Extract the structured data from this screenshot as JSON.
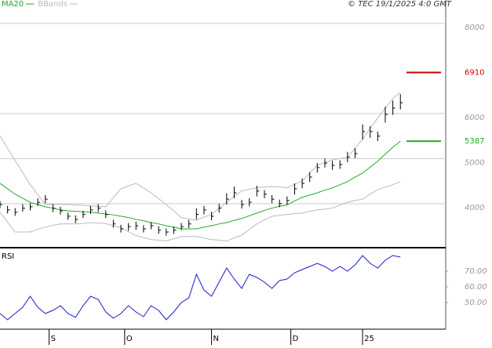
{
  "source": "© TEC 19/1/2025 4:0 GMT",
  "chart_data": [
    {
      "type": "ohlc",
      "x": [
        0,
        2,
        4,
        6,
        8,
        10,
        12,
        14,
        16,
        18,
        20,
        22,
        24,
        26,
        28,
        30,
        32,
        34,
        36,
        38,
        40,
        42,
        44,
        46,
        48,
        50,
        52,
        54,
        56,
        58,
        60,
        62,
        64,
        66,
        68,
        70,
        72,
        74,
        76,
        78,
        80,
        82,
        84,
        86,
        88,
        90,
        92,
        94,
        96,
        98,
        100,
        102,
        104,
        106
      ],
      "high": [
        4060,
        3950,
        3900,
        3990,
        4010,
        4120,
        4190,
        3990,
        3930,
        3800,
        3740,
        3840,
        3950,
        3990,
        3850,
        3640,
        3530,
        3570,
        3600,
        3520,
        3590,
        3500,
        3450,
        3490,
        3570,
        3640,
        3900,
        3950,
        3820,
        4000,
        4230,
        4380,
        4080,
        4120,
        4400,
        4300,
        4190,
        4090,
        4160,
        4450,
        4560,
        4700,
        4900,
        5000,
        4950,
        4960,
        5150,
        5230,
        5760,
        5720,
        5600,
        6150,
        6290,
        6430
      ],
      "low": [
        3900,
        3780,
        3730,
        3820,
        3850,
        3950,
        4010,
        3810,
        3760,
        3640,
        3570,
        3680,
        3770,
        3810,
        3680,
        3470,
        3360,
        3400,
        3420,
        3360,
        3430,
        3330,
        3290,
        3330,
        3410,
        3460,
        3650,
        3760,
        3630,
        3800,
        3980,
        4120,
        3890,
        3940,
        4160,
        4120,
        4010,
        3920,
        3980,
        4200,
        4340,
        4480,
        4690,
        4800,
        4750,
        4770,
        4920,
        5010,
        5420,
        5460,
        5390,
        5800,
        5970,
        6090
      ],
      "close": [
        3980,
        3860,
        3810,
        3900,
        3930,
        4030,
        4100,
        3900,
        3840,
        3720,
        3650,
        3760,
        3860,
        3900,
        3760,
        3550,
        3440,
        3490,
        3510,
        3440,
        3510,
        3410,
        3370,
        3410,
        3490,
        3550,
        3760,
        3860,
        3720,
        3900,
        4100,
        4240,
        3980,
        4030,
        4280,
        4210,
        4100,
        4000,
        4070,
        4330,
        4450,
        4590,
        4800,
        4900,
        4850,
        4870,
        5030,
        5110,
        5600,
        5600,
        5500,
        5980,
        6120,
        6240
      ],
      "bar_color": "#000000",
      "series": [
        {
          "name": "MA20",
          "color": "#22aa22",
          "values": [
            4450,
            4330,
            4210,
            4120,
            4030,
            3980,
            3930,
            3900,
            3860,
            3840,
            3830,
            3820,
            3810,
            3790,
            3770,
            3750,
            3720,
            3690,
            3650,
            3620,
            3580,
            3550,
            3510,
            3480,
            3440,
            3440,
            3440,
            3480,
            3510,
            3550,
            3580,
            3630,
            3670,
            3730,
            3790,
            3850,
            3900,
            3940,
            3970,
            4060,
            4140,
            4190,
            4240,
            4300,
            4350,
            4420,
            4490,
            4590,
            4680,
            4810,
            4940,
            5100,
            5250,
            5387
          ]
        },
        {
          "name": "BBands",
          "color": "#bbbbbb",
          "upper": [
            5500,
            5230,
            4960,
            4690,
            4420,
            4200,
            3980,
            3980,
            3980,
            3980,
            3970,
            3960,
            3950,
            3940,
            3930,
            4130,
            4330,
            4390,
            4450,
            4350,
            4240,
            4110,
            3980,
            3840,
            3690,
            3660,
            3630,
            3700,
            3760,
            3900,
            4030,
            4160,
            4280,
            4320,
            4350,
            4370,
            4380,
            4370,
            4350,
            4430,
            4500,
            4680,
            4850,
            4910,
            4970,
            5000,
            5030,
            5230,
            5430,
            5670,
            5900,
            6120,
            6330,
            6470
          ],
          "lower": [
            3810,
            3590,
            3370,
            3370,
            3370,
            3430,
            3480,
            3520,
            3550,
            3550,
            3550,
            3560,
            3580,
            3570,
            3560,
            3510,
            3470,
            3380,
            3290,
            3250,
            3200,
            3190,
            3170,
            3220,
            3270,
            3270,
            3270,
            3240,
            3200,
            3190,
            3170,
            3240,
            3300,
            3430,
            3550,
            3640,
            3720,
            3740,
            3760,
            3780,
            3790,
            3830,
            3860,
            3880,
            3900,
            3970,
            4030,
            4070,
            4100,
            4210,
            4310,
            4370,
            4420,
            4490
          ]
        }
      ],
      "levels": [
        {
          "value": 6910,
          "color": "#cc0000"
        },
        {
          "value": 5387,
          "color": "#22aa22"
        }
      ],
      "xlim": [
        0,
        118
      ],
      "ylim": [
        3040,
        8520
      ],
      "yticks": [
        4000,
        5000,
        6000,
        8000
      ],
      "grid": true
    },
    {
      "type": "line",
      "title": "RSI",
      "x": [
        0,
        2,
        4,
        6,
        8,
        10,
        12,
        14,
        16,
        18,
        20,
        22,
        24,
        26,
        28,
        30,
        32,
        34,
        36,
        38,
        40,
        42,
        44,
        46,
        48,
        50,
        52,
        54,
        56,
        58,
        60,
        62,
        64,
        66,
        68,
        70,
        72,
        74,
        76,
        78,
        80,
        82,
        84,
        86,
        88,
        90,
        92,
        94,
        96,
        98,
        100,
        102,
        104,
        106
      ],
      "series": [
        {
          "color": "#1a1acc",
          "values": [
            43,
            39,
            43,
            47,
            54,
            47,
            43,
            45,
            48,
            43,
            40.5,
            48,
            54,
            52,
            44,
            40,
            43,
            48,
            44,
            41,
            48,
            45,
            39,
            44,
            50,
            53,
            68,
            58,
            54,
            63,
            72,
            65,
            59,
            68,
            66,
            63,
            59,
            64,
            65,
            69,
            71,
            73,
            75,
            73,
            70,
            73,
            70,
            74,
            80,
            75,
            72,
            77,
            80,
            79
          ]
        }
      ],
      "xlim": [
        0,
        118
      ],
      "ylim": [
        33,
        84
      ],
      "yticks": [
        {
          "value": 50,
          "label": "50.00"
        },
        {
          "value": 60,
          "label": "60.00"
        },
        {
          "value": 70,
          "label": "70.00"
        }
      ],
      "xticks": [
        {
          "value": 13,
          "label": "S"
        },
        {
          "value": 33,
          "label": "O"
        },
        {
          "value": 56,
          "label": "N"
        },
        {
          "value": 77,
          "label": "D"
        },
        {
          "value": 96,
          "label": "25"
        }
      ]
    }
  ]
}
